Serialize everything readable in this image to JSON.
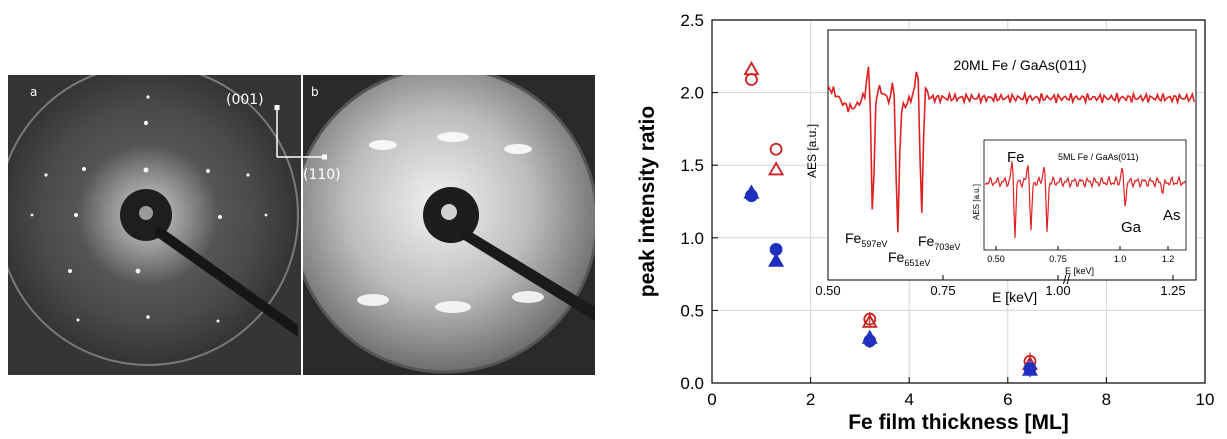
{
  "leed": {
    "panel_a_label": "a",
    "panel_b_label": "b",
    "direction_up_label": "(001)",
    "direction_right_label": "(110)"
  },
  "chart_data": {
    "type": "scatter",
    "xlabel": "Fe film thickness [ML]",
    "ylabel": "peak intensity ratio",
    "xlim": [
      0,
      10
    ],
    "ylim": [
      0,
      2.5
    ],
    "xticks": [
      "0",
      "2",
      "4",
      "6",
      "8",
      "10"
    ],
    "yticks": [
      "0.0",
      "0.5",
      "1.0",
      "1.5",
      "2.0",
      "2.5"
    ],
    "grid": true,
    "series": [
      {
        "marker": "open-circle",
        "color": "#cc1f1f",
        "x": [
          0.8,
          1.3,
          3.2,
          6.45
        ],
        "y": [
          2.09,
          1.61,
          0.44,
          0.15
        ],
        "err": [
          0,
          0,
          0.05,
          0.06
        ]
      },
      {
        "marker": "open-triangle",
        "color": "#cc1f1f",
        "x": [
          0.8,
          1.3,
          3.2,
          6.45
        ],
        "y": [
          2.16,
          1.47,
          0.42,
          0.13
        ],
        "err": [
          0,
          0,
          0,
          0
        ]
      },
      {
        "marker": "filled-circle",
        "color": "#1f2fbf",
        "x": [
          0.8,
          1.3,
          3.2,
          6.45
        ],
        "y": [
          1.29,
          0.92,
          0.29,
          0.1
        ],
        "err": [
          0,
          0,
          0.05,
          0.06
        ]
      },
      {
        "marker": "filled-triangle",
        "color": "#1f2fbf",
        "x": [
          0.8,
          1.3,
          3.2,
          6.45
        ],
        "y": [
          1.31,
          0.84,
          0.31,
          0.09
        ],
        "err": [
          0,
          0,
          0,
          0
        ]
      }
    ],
    "inset": {
      "type": "line",
      "title": "20ML Fe / GaAs(011)",
      "xlabel": "E [keV]",
      "ylabel": "AES [a.u.]",
      "xlim": [
        0.5,
        1.3
      ],
      "xticks": [
        "0.50",
        "0.75",
        "1.00",
        "1.25"
      ],
      "peaks": [
        {
          "label": "Fe",
          "subscript": "597eV",
          "energy_kev": 0.597
        },
        {
          "label": "Fe",
          "subscript": "651eV",
          "energy_kev": 0.651
        },
        {
          "label": "Fe",
          "subscript": "703eV",
          "energy_kev": 0.703
        }
      ],
      "color": "#e02020"
    },
    "inset2": {
      "type": "line",
      "title": "5ML Fe / GaAs(011)",
      "xlabel": "E [keV]",
      "ylabel": "AES [a.u.]",
      "xticks": [
        "0.50",
        "0.75",
        "1.0",
        "1.2"
      ],
      "annotations": [
        "Fe",
        "Ga",
        "As"
      ],
      "color": "#e02020"
    }
  }
}
